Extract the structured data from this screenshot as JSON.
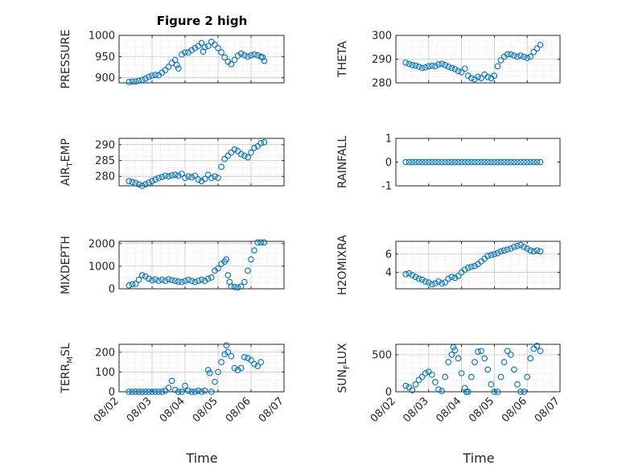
{
  "figure_title": "Figure 2 high",
  "x_axis_label": "Time",
  "x_tick_labels": [
    "08/02",
    "08/03",
    "08/04",
    "08/05",
    "08/06",
    "08/07"
  ],
  "colors": {
    "marker": "#0072BD",
    "axes": "#262626",
    "grid": "#c8c8c8"
  },
  "chart_data": [
    {
      "type": "scatter",
      "title": "Figure 2 high",
      "ylabel": "PRESSURE",
      "ylabel_sub": "",
      "ylabel_tail": "",
      "ylim": [
        888,
        1000
      ],
      "yticks": [
        900,
        950,
        1000
      ],
      "grid": true,
      "points": [
        [
          0.3,
          890
        ],
        [
          0.4,
          891
        ],
        [
          0.5,
          891
        ],
        [
          0.6,
          893
        ],
        [
          0.7,
          895
        ],
        [
          0.8,
          898
        ],
        [
          0.9,
          902
        ],
        [
          1.0,
          905
        ],
        [
          1.1,
          907
        ],
        [
          1.2,
          906
        ],
        [
          1.3,
          912
        ],
        [
          1.4,
          918
        ],
        [
          1.5,
          926
        ],
        [
          1.6,
          935
        ],
        [
          1.7,
          942
        ],
        [
          1.75,
          930
        ],
        [
          1.8,
          922
        ],
        [
          1.9,
          955
        ],
        [
          2.0,
          960
        ],
        [
          2.1,
          960
        ],
        [
          2.2,
          965
        ],
        [
          2.3,
          970
        ],
        [
          2.4,
          975
        ],
        [
          2.5,
          982
        ],
        [
          2.55,
          962
        ],
        [
          2.6,
          972
        ],
        [
          2.7,
          975
        ],
        [
          2.8,
          985
        ],
        [
          2.9,
          978
        ],
        [
          3.0,
          970
        ],
        [
          3.1,
          960
        ],
        [
          3.2,
          948
        ],
        [
          3.3,
          938
        ],
        [
          3.4,
          932
        ],
        [
          3.5,
          942
        ],
        [
          3.6,
          952
        ],
        [
          3.7,
          957
        ],
        [
          3.8,
          953
        ],
        [
          3.9,
          950
        ],
        [
          4.0,
          953
        ],
        [
          4.1,
          955
        ],
        [
          4.2,
          953
        ],
        [
          4.3,
          950
        ],
        [
          4.35,
          948
        ],
        [
          4.4,
          940
        ]
      ]
    },
    {
      "type": "scatter",
      "ylabel": "THETA",
      "ylabel_sub": "",
      "ylabel_tail": "",
      "ylim": [
        280,
        300
      ],
      "yticks": [
        280,
        290,
        300
      ],
      "grid": true,
      "points": [
        [
          0.3,
          288.5
        ],
        [
          0.4,
          288
        ],
        [
          0.5,
          287.5
        ],
        [
          0.6,
          287.3
        ],
        [
          0.7,
          286.8
        ],
        [
          0.8,
          286.3
        ],
        [
          0.9,
          286.5
        ],
        [
          1.0,
          287
        ],
        [
          1.1,
          287.2
        ],
        [
          1.2,
          287
        ],
        [
          1.3,
          287.8
        ],
        [
          1.4,
          288
        ],
        [
          1.5,
          287.5
        ],
        [
          1.6,
          286.8
        ],
        [
          1.7,
          286.3
        ],
        [
          1.8,
          285.8
        ],
        [
          1.9,
          285
        ],
        [
          2.0,
          284.5
        ],
        [
          2.1,
          286
        ],
        [
          2.2,
          283
        ],
        [
          2.3,
          282
        ],
        [
          2.4,
          281.5
        ],
        [
          2.5,
          282.5
        ],
        [
          2.6,
          282
        ],
        [
          2.7,
          283.5
        ],
        [
          2.8,
          282.5
        ],
        [
          2.9,
          282
        ],
        [
          3.0,
          283
        ],
        [
          3.1,
          287
        ],
        [
          3.2,
          289.5
        ],
        [
          3.3,
          291
        ],
        [
          3.4,
          292
        ],
        [
          3.5,
          292
        ],
        [
          3.6,
          291.5
        ],
        [
          3.7,
          291
        ],
        [
          3.8,
          291.5
        ],
        [
          3.9,
          291
        ],
        [
          4.0,
          290.5
        ],
        [
          4.1,
          291
        ],
        [
          4.2,
          293
        ],
        [
          4.3,
          294.5
        ],
        [
          4.4,
          296
        ]
      ]
    },
    {
      "type": "scatter",
      "ylabel": "AIR",
      "ylabel_sub": "T",
      "ylabel_tail": "EMP",
      "ylim": [
        277,
        292
      ],
      "yticks": [
        280,
        285,
        290
      ],
      "grid": true,
      "points": [
        [
          0.3,
          278.5
        ],
        [
          0.4,
          278.2
        ],
        [
          0.5,
          277.9
        ],
        [
          0.6,
          277.5
        ],
        [
          0.7,
          277
        ],
        [
          0.8,
          277.5
        ],
        [
          0.9,
          278
        ],
        [
          1.0,
          278.5
        ],
        [
          1.1,
          279
        ],
        [
          1.2,
          279.5
        ],
        [
          1.3,
          279.8
        ],
        [
          1.4,
          280.2
        ],
        [
          1.5,
          280
        ],
        [
          1.6,
          280.3
        ],
        [
          1.7,
          280.5
        ],
        [
          1.8,
          280.2
        ],
        [
          1.9,
          280.8
        ],
        [
          2.0,
          279.5
        ],
        [
          2.1,
          280
        ],
        [
          2.2,
          279.7
        ],
        [
          2.3,
          280.2
        ],
        [
          2.4,
          279
        ],
        [
          2.5,
          278.5
        ],
        [
          2.6,
          279.2
        ],
        [
          2.7,
          280.5
        ],
        [
          2.8,
          279.5
        ],
        [
          2.9,
          280
        ],
        [
          3.0,
          279.5
        ],
        [
          3.1,
          283
        ],
        [
          3.2,
          285.5
        ],
        [
          3.3,
          286.5
        ],
        [
          3.4,
          287.5
        ],
        [
          3.5,
          288.5
        ],
        [
          3.6,
          288
        ],
        [
          3.7,
          287
        ],
        [
          3.8,
          286.5
        ],
        [
          3.9,
          286
        ],
        [
          4.0,
          287.5
        ],
        [
          4.1,
          289
        ],
        [
          4.2,
          289.5
        ],
        [
          4.3,
          290.5
        ],
        [
          4.4,
          290.8
        ]
      ]
    },
    {
      "type": "scatter",
      "ylabel": "RAINFALL",
      "ylabel_sub": "",
      "ylabel_tail": "",
      "ylim": [
        -1,
        1
      ],
      "yticks": [
        -1,
        0,
        1
      ],
      "grid": false,
      "points": [
        [
          0.3,
          0
        ],
        [
          0.4,
          0
        ],
        [
          0.5,
          0
        ],
        [
          0.6,
          0
        ],
        [
          0.7,
          0
        ],
        [
          0.8,
          0
        ],
        [
          0.9,
          0
        ],
        [
          1.0,
          0
        ],
        [
          1.1,
          0
        ],
        [
          1.2,
          0
        ],
        [
          1.3,
          0
        ],
        [
          1.4,
          0
        ],
        [
          1.5,
          0
        ],
        [
          1.6,
          0
        ],
        [
          1.7,
          0
        ],
        [
          1.8,
          0
        ],
        [
          1.9,
          0
        ],
        [
          2.0,
          0
        ],
        [
          2.1,
          0
        ],
        [
          2.2,
          0
        ],
        [
          2.3,
          0
        ],
        [
          2.4,
          0
        ],
        [
          2.5,
          0
        ],
        [
          2.6,
          0
        ],
        [
          2.7,
          0
        ],
        [
          2.8,
          0
        ],
        [
          2.9,
          0
        ],
        [
          3.0,
          0
        ],
        [
          3.1,
          0
        ],
        [
          3.2,
          0
        ],
        [
          3.3,
          0
        ],
        [
          3.4,
          0
        ],
        [
          3.5,
          0
        ],
        [
          3.6,
          0
        ],
        [
          3.7,
          0
        ],
        [
          3.8,
          0
        ],
        [
          3.9,
          0
        ],
        [
          4.0,
          0
        ],
        [
          4.1,
          0
        ],
        [
          4.2,
          0
        ],
        [
          4.3,
          0
        ],
        [
          4.4,
          0
        ]
      ]
    },
    {
      "type": "scatter",
      "ylabel": "MIXDEPTH",
      "ylabel_sub": "",
      "ylabel_tail": "",
      "ylim": [
        0,
        2100
      ],
      "yticks": [
        0,
        1000,
        2000
      ],
      "grid": true,
      "points": [
        [
          0.3,
          150
        ],
        [
          0.4,
          200
        ],
        [
          0.5,
          220
        ],
        [
          0.6,
          400
        ],
        [
          0.7,
          600
        ],
        [
          0.8,
          550
        ],
        [
          0.9,
          450
        ],
        [
          1.0,
          380
        ],
        [
          1.1,
          420
        ],
        [
          1.2,
          350
        ],
        [
          1.3,
          400
        ],
        [
          1.4,
          350
        ],
        [
          1.5,
          420
        ],
        [
          1.6,
          380
        ],
        [
          1.7,
          350
        ],
        [
          1.8,
          320
        ],
        [
          1.9,
          300
        ],
        [
          2.0,
          350
        ],
        [
          2.1,
          400
        ],
        [
          2.2,
          350
        ],
        [
          2.3,
          300
        ],
        [
          2.4,
          350
        ],
        [
          2.5,
          400
        ],
        [
          2.6,
          350
        ],
        [
          2.7,
          450
        ],
        [
          2.8,
          500
        ],
        [
          2.9,
          800
        ],
        [
          3.0,
          900
        ],
        [
          3.1,
          1100
        ],
        [
          3.2,
          1200
        ],
        [
          3.25,
          1300
        ],
        [
          3.3,
          600
        ],
        [
          3.35,
          300
        ],
        [
          3.4,
          100
        ],
        [
          3.5,
          80
        ],
        [
          3.6,
          60
        ],
        [
          3.7,
          100
        ],
        [
          3.8,
          300
        ],
        [
          3.9,
          800
        ],
        [
          4.0,
          1300
        ],
        [
          4.1,
          1700
        ],
        [
          4.2,
          2050
        ],
        [
          4.3,
          2050
        ],
        [
          4.4,
          2050
        ]
      ]
    },
    {
      "type": "scatter",
      "ylabel": "H2OMIXRA",
      "ylabel_sub": "",
      "ylabel_tail": "",
      "ylim": [
        2.2,
        7.4
      ],
      "yticks": [
        4,
        6
      ],
      "grid": true,
      "points": [
        [
          0.3,
          3.8
        ],
        [
          0.4,
          3.9
        ],
        [
          0.5,
          3.7
        ],
        [
          0.6,
          3.5
        ],
        [
          0.7,
          3.3
        ],
        [
          0.8,
          3.2
        ],
        [
          0.9,
          3.0
        ],
        [
          1.0,
          2.9
        ],
        [
          1.1,
          2.7
        ],
        [
          1.2,
          2.8
        ],
        [
          1.3,
          3.0
        ],
        [
          1.4,
          2.8
        ],
        [
          1.5,
          2.9
        ],
        [
          1.6,
          3.3
        ],
        [
          1.7,
          3.5
        ],
        [
          1.8,
          3.4
        ],
        [
          1.9,
          3.6
        ],
        [
          2.0,
          4.0
        ],
        [
          2.1,
          4.3
        ],
        [
          2.2,
          4.5
        ],
        [
          2.3,
          4.6
        ],
        [
          2.4,
          4.7
        ],
        [
          2.5,
          4.9
        ],
        [
          2.6,
          5.2
        ],
        [
          2.7,
          5.5
        ],
        [
          2.8,
          5.8
        ],
        [
          2.9,
          5.9
        ],
        [
          3.0,
          6.0
        ],
        [
          3.1,
          6.1
        ],
        [
          3.2,
          6.3
        ],
        [
          3.3,
          6.4
        ],
        [
          3.4,
          6.5
        ],
        [
          3.5,
          6.6
        ],
        [
          3.6,
          6.8
        ],
        [
          3.7,
          6.9
        ],
        [
          3.8,
          7.0
        ],
        [
          3.9,
          6.8
        ],
        [
          4.0,
          6.6
        ],
        [
          4.1,
          6.4
        ],
        [
          4.2,
          6.3
        ],
        [
          4.3,
          6.4
        ],
        [
          4.4,
          6.3
        ]
      ]
    },
    {
      "type": "scatter",
      "ylabel": "TERR",
      "ylabel_sub": "M",
      "ylabel_tail": "SL",
      "ylim": [
        0,
        240
      ],
      "yticks": [
        0,
        100,
        200
      ],
      "grid": true,
      "points": [
        [
          0.3,
          0
        ],
        [
          0.4,
          0
        ],
        [
          0.5,
          0
        ],
        [
          0.6,
          0
        ],
        [
          0.7,
          0
        ],
        [
          0.8,
          0
        ],
        [
          0.9,
          0
        ],
        [
          1.0,
          0
        ],
        [
          1.1,
          0
        ],
        [
          1.2,
          0
        ],
        [
          1.3,
          0
        ],
        [
          1.4,
          5
        ],
        [
          1.5,
          20
        ],
        [
          1.6,
          55
        ],
        [
          1.7,
          10
        ],
        [
          1.8,
          0
        ],
        [
          1.9,
          0
        ],
        [
          2.0,
          30
        ],
        [
          2.1,
          5
        ],
        [
          2.2,
          0
        ],
        [
          2.3,
          0
        ],
        [
          2.4,
          5
        ],
        [
          2.5,
          0
        ],
        [
          2.6,
          5
        ],
        [
          2.7,
          110
        ],
        [
          2.75,
          95
        ],
        [
          2.8,
          0
        ],
        [
          2.9,
          50
        ],
        [
          3.0,
          100
        ],
        [
          3.1,
          150
        ],
        [
          3.2,
          190
        ],
        [
          3.25,
          235
        ],
        [
          3.3,
          200
        ],
        [
          3.4,
          180
        ],
        [
          3.5,
          120
        ],
        [
          3.6,
          110
        ],
        [
          3.7,
          120
        ],
        [
          3.8,
          175
        ],
        [
          3.9,
          170
        ],
        [
          4.0,
          160
        ],
        [
          4.1,
          140
        ],
        [
          4.2,
          130
        ],
        [
          4.3,
          150
        ]
      ]
    },
    {
      "type": "scatter",
      "ylabel": "SUN",
      "ylabel_sub": "F",
      "ylabel_tail": "LUX",
      "ylim": [
        0,
        640
      ],
      "yticks": [
        0,
        500
      ],
      "grid": true,
      "points": [
        [
          0.3,
          80
        ],
        [
          0.4,
          60
        ],
        [
          0.5,
          20
        ],
        [
          0.6,
          100
        ],
        [
          0.7,
          160
        ],
        [
          0.8,
          200
        ],
        [
          0.9,
          250
        ],
        [
          1.0,
          270
        ],
        [
          1.1,
          230
        ],
        [
          1.2,
          130
        ],
        [
          1.3,
          30
        ],
        [
          1.4,
          10
        ],
        [
          1.5,
          200
        ],
        [
          1.6,
          400
        ],
        [
          1.7,
          500
        ],
        [
          1.75,
          600
        ],
        [
          1.8,
          560
        ],
        [
          1.9,
          450
        ],
        [
          2.0,
          250
        ],
        [
          2.1,
          50
        ],
        [
          2.15,
          0
        ],
        [
          2.2,
          0
        ],
        [
          2.3,
          200
        ],
        [
          2.4,
          400
        ],
        [
          2.5,
          540
        ],
        [
          2.6,
          550
        ],
        [
          2.7,
          450
        ],
        [
          2.8,
          300
        ],
        [
          2.9,
          100
        ],
        [
          3.0,
          0
        ],
        [
          3.1,
          0
        ],
        [
          3.2,
          200
        ],
        [
          3.3,
          400
        ],
        [
          3.4,
          550
        ],
        [
          3.5,
          500
        ],
        [
          3.6,
          300
        ],
        [
          3.7,
          100
        ],
        [
          3.8,
          0
        ],
        [
          3.9,
          0
        ],
        [
          4.0,
          200
        ],
        [
          4.1,
          450
        ],
        [
          4.2,
          580
        ],
        [
          4.3,
          620
        ],
        [
          4.4,
          550
        ]
      ]
    }
  ]
}
